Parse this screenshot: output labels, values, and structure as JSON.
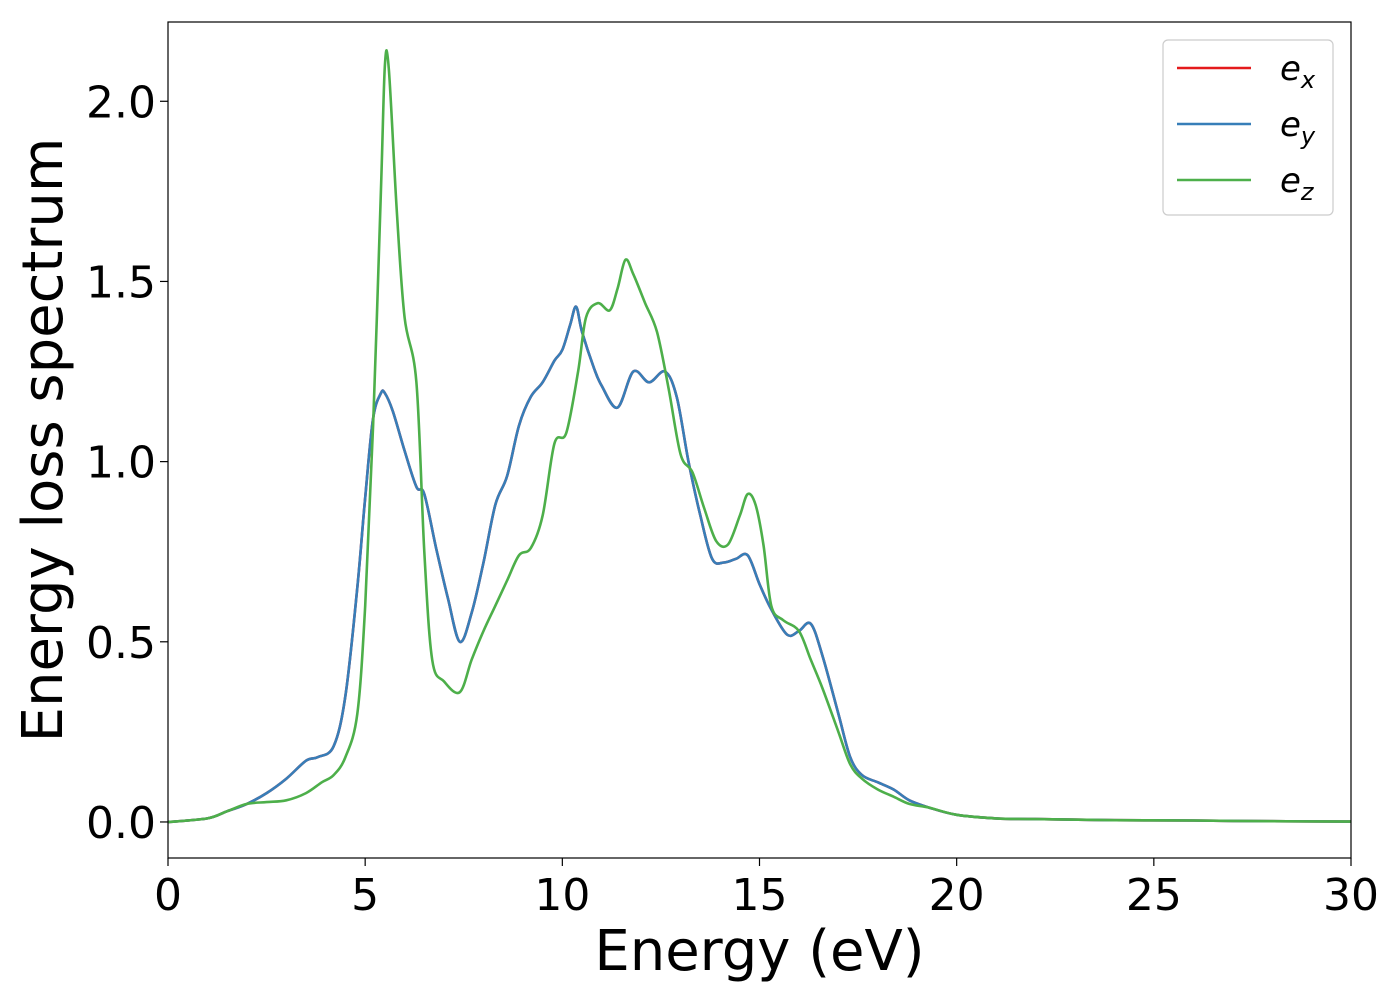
{
  "chart_data": {
    "type": "line",
    "title": "",
    "xlabel": "Energy (eV)",
    "ylabel": "Energy loss spectrum",
    "xlim": [
      0,
      30
    ],
    "ylim": [
      -0.1,
      2.22
    ],
    "xticks": [
      0,
      5,
      10,
      15,
      20,
      25,
      30
    ],
    "xtick_labels": [
      "0",
      "5",
      "10",
      "15",
      "20",
      "25",
      "30"
    ],
    "yticks": [
      0.0,
      0.5,
      1.0,
      1.5,
      2.0
    ],
    "ytick_labels": [
      "0.0",
      "0.5",
      "1.0",
      "1.5",
      "2.0"
    ],
    "grid": false,
    "legend_position": "top-right",
    "series": [
      {
        "name": "e_x",
        "label_base": "e",
        "label_sub": "x",
        "color": "#e41a1c",
        "x": [
          0,
          1,
          1.5,
          2,
          2.5,
          3,
          3.5,
          3.8,
          4.2,
          4.5,
          4.8,
          5.0,
          5.2,
          5.4,
          5.5,
          5.7,
          6.0,
          6.3,
          6.5,
          6.8,
          7.1,
          7.4,
          7.7,
          8.0,
          8.3,
          8.6,
          8.9,
          9.2,
          9.5,
          9.8,
          10.0,
          10.2,
          10.35,
          10.5,
          10.8,
          11.0,
          11.4,
          11.8,
          12.2,
          12.6,
          12.9,
          13.2,
          13.5,
          13.8,
          14.1,
          14.4,
          14.7,
          15.0,
          15.3,
          15.7,
          16.0,
          16.3,
          16.6,
          17.0,
          17.3,
          17.6,
          18.0,
          18.4,
          18.8,
          19.3,
          20,
          21,
          22,
          24,
          26,
          28,
          30
        ],
        "y": [
          0,
          0.01,
          0.03,
          0.05,
          0.08,
          0.12,
          0.17,
          0.18,
          0.21,
          0.35,
          0.65,
          0.9,
          1.12,
          1.19,
          1.19,
          1.14,
          1.03,
          0.93,
          0.91,
          0.76,
          0.62,
          0.5,
          0.58,
          0.72,
          0.88,
          0.96,
          1.1,
          1.18,
          1.22,
          1.28,
          1.31,
          1.38,
          1.43,
          1.36,
          1.26,
          1.21,
          1.15,
          1.25,
          1.22,
          1.25,
          1.18,
          1.0,
          0.85,
          0.73,
          0.72,
          0.73,
          0.74,
          0.66,
          0.59,
          0.52,
          0.53,
          0.55,
          0.46,
          0.3,
          0.18,
          0.13,
          0.11,
          0.09,
          0.06,
          0.04,
          0.02,
          0.01,
          0.008,
          0.005,
          0.004,
          0.002,
          0.001
        ]
      },
      {
        "name": "e_y",
        "label_base": "e",
        "label_sub": "y",
        "color": "#377eb8",
        "x": [
          0,
          1,
          1.5,
          2,
          2.5,
          3,
          3.5,
          3.8,
          4.2,
          4.5,
          4.8,
          5.0,
          5.2,
          5.4,
          5.5,
          5.7,
          6.0,
          6.3,
          6.5,
          6.8,
          7.1,
          7.4,
          7.7,
          8.0,
          8.3,
          8.6,
          8.9,
          9.2,
          9.5,
          9.8,
          10.0,
          10.2,
          10.35,
          10.5,
          10.8,
          11.0,
          11.4,
          11.8,
          12.2,
          12.6,
          12.9,
          13.2,
          13.5,
          13.8,
          14.1,
          14.4,
          14.7,
          15.0,
          15.3,
          15.7,
          16.0,
          16.3,
          16.6,
          17.0,
          17.3,
          17.6,
          18.0,
          18.4,
          18.8,
          19.3,
          20,
          21,
          22,
          24,
          26,
          28,
          30
        ],
        "y": [
          0,
          0.01,
          0.03,
          0.05,
          0.08,
          0.12,
          0.17,
          0.18,
          0.21,
          0.35,
          0.65,
          0.9,
          1.12,
          1.19,
          1.19,
          1.14,
          1.03,
          0.93,
          0.91,
          0.76,
          0.62,
          0.5,
          0.58,
          0.72,
          0.88,
          0.96,
          1.1,
          1.18,
          1.22,
          1.28,
          1.31,
          1.38,
          1.43,
          1.36,
          1.26,
          1.21,
          1.15,
          1.25,
          1.22,
          1.25,
          1.18,
          1.0,
          0.85,
          0.73,
          0.72,
          0.73,
          0.74,
          0.66,
          0.59,
          0.52,
          0.53,
          0.55,
          0.46,
          0.3,
          0.18,
          0.13,
          0.11,
          0.09,
          0.06,
          0.04,
          0.02,
          0.01,
          0.008,
          0.005,
          0.004,
          0.002,
          0.001
        ]
      },
      {
        "name": "e_z",
        "label_base": "e",
        "label_sub": "z",
        "color": "#4daf4a",
        "x": [
          0,
          1,
          1.5,
          2,
          2.5,
          3,
          3.5,
          3.9,
          4.2,
          4.5,
          4.8,
          5.0,
          5.2,
          5.4,
          5.5,
          5.6,
          5.8,
          6.0,
          6.3,
          6.5,
          6.7,
          7.0,
          7.4,
          7.7,
          8.0,
          8.3,
          8.6,
          8.9,
          9.2,
          9.5,
          9.8,
          10.1,
          10.4,
          10.6,
          10.9,
          11.2,
          11.4,
          11.6,
          11.8,
          12.1,
          12.4,
          12.7,
          13.0,
          13.3,
          13.6,
          13.9,
          14.2,
          14.5,
          14.7,
          14.9,
          15.1,
          15.3,
          15.6,
          16.0,
          16.3,
          16.6,
          17.0,
          17.3,
          17.6,
          18.0,
          18.4,
          18.8,
          19.3,
          20,
          21,
          22,
          24,
          26,
          28,
          30
        ],
        "y": [
          0,
          0.01,
          0.03,
          0.05,
          0.055,
          0.06,
          0.08,
          0.11,
          0.13,
          0.18,
          0.3,
          0.6,
          1.1,
          1.75,
          2.1,
          2.09,
          1.7,
          1.4,
          1.22,
          0.75,
          0.45,
          0.39,
          0.36,
          0.45,
          0.53,
          0.6,
          0.67,
          0.74,
          0.76,
          0.85,
          1.05,
          1.08,
          1.25,
          1.4,
          1.44,
          1.42,
          1.48,
          1.56,
          1.52,
          1.44,
          1.36,
          1.2,
          1.02,
          0.97,
          0.87,
          0.78,
          0.77,
          0.85,
          0.91,
          0.88,
          0.77,
          0.6,
          0.56,
          0.53,
          0.45,
          0.37,
          0.25,
          0.16,
          0.12,
          0.09,
          0.07,
          0.05,
          0.04,
          0.02,
          0.01,
          0.008,
          0.005,
          0.004,
          0.002,
          0.001
        ]
      }
    ]
  }
}
